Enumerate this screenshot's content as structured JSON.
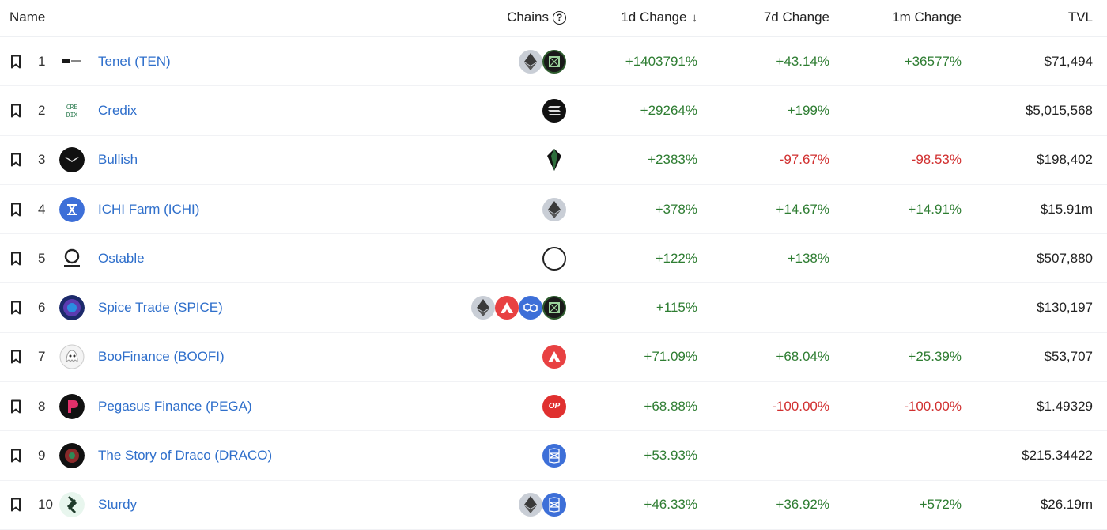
{
  "headers": {
    "name": "Name",
    "chains": "Chains",
    "change_1d": "1d Change",
    "change_7d": "7d Change",
    "change_1m": "1m Change",
    "tvl": "TVL"
  },
  "colors": {
    "link": "#2f6fcb",
    "positive": "#2e7d32",
    "negative": "#d13030"
  },
  "rows": [
    {
      "rank": "1",
      "name": "Tenet (TEN)",
      "logo": "tenet-logo",
      "chains": [
        "ethereum-icon",
        "tenet-chain-icon"
      ],
      "c1d": "+1403791%",
      "c7d": "+43.14%",
      "c1m": "+36577%",
      "tvl": "$71,494"
    },
    {
      "rank": "2",
      "name": "Credix",
      "logo": "credix-logo",
      "chains": [
        "solana-icon"
      ],
      "c1d": "+29264%",
      "c7d": "+199%",
      "c1m": "",
      "tvl": "$5,015,568"
    },
    {
      "rank": "3",
      "name": "Bullish",
      "logo": "bullish-logo",
      "chains": [
        "eos-icon"
      ],
      "c1d": "+2383%",
      "c7d": "-97.67%",
      "c1m": "-98.53%",
      "tvl": "$198,402"
    },
    {
      "rank": "4",
      "name": "ICHI Farm (ICHI)",
      "logo": "ichi-logo",
      "chains": [
        "ethereum-icon"
      ],
      "c1d": "+378%",
      "c7d": "+14.67%",
      "c1m": "+14.91%",
      "tvl": "$15.91m"
    },
    {
      "rank": "5",
      "name": "Ostable",
      "logo": "ostable-logo",
      "chains": [
        "obyte-icon"
      ],
      "c1d": "+122%",
      "c7d": "+138%",
      "c1m": "",
      "tvl": "$507,880"
    },
    {
      "rank": "6",
      "name": "Spice Trade (SPICE)",
      "logo": "spice-logo",
      "chains": [
        "ethereum-icon",
        "avalanche-icon",
        "polygon-icon",
        "tenet-chain-icon"
      ],
      "c1d": "+115%",
      "c7d": "",
      "c1m": "",
      "tvl": "$130,197"
    },
    {
      "rank": "7",
      "name": "BooFinance (BOOFI)",
      "logo": "boofi-logo",
      "chains": [
        "avalanche-icon"
      ],
      "c1d": "+71.09%",
      "c7d": "+68.04%",
      "c1m": "+25.39%",
      "tvl": "$53,707"
    },
    {
      "rank": "8",
      "name": "Pegasus Finance (PEGA)",
      "logo": "pegasus-logo",
      "chains": [
        "optimism-icon"
      ],
      "c1d": "+68.88%",
      "c7d": "-100.00%",
      "c1m": "-100.00%",
      "tvl": "$1.49329"
    },
    {
      "rank": "9",
      "name": "The Story of Draco (DRACO)",
      "logo": "draco-logo",
      "chains": [
        "fantom-icon"
      ],
      "c1d": "+53.93%",
      "c7d": "",
      "c1m": "",
      "tvl": "$215.34422"
    },
    {
      "rank": "10",
      "name": "Sturdy",
      "logo": "sturdy-logo",
      "chains": [
        "ethereum-icon",
        "fantom-icon"
      ],
      "c1d": "+46.33%",
      "c7d": "+36.92%",
      "c1m": "+572%",
      "tvl": "$26.19m"
    }
  ]
}
